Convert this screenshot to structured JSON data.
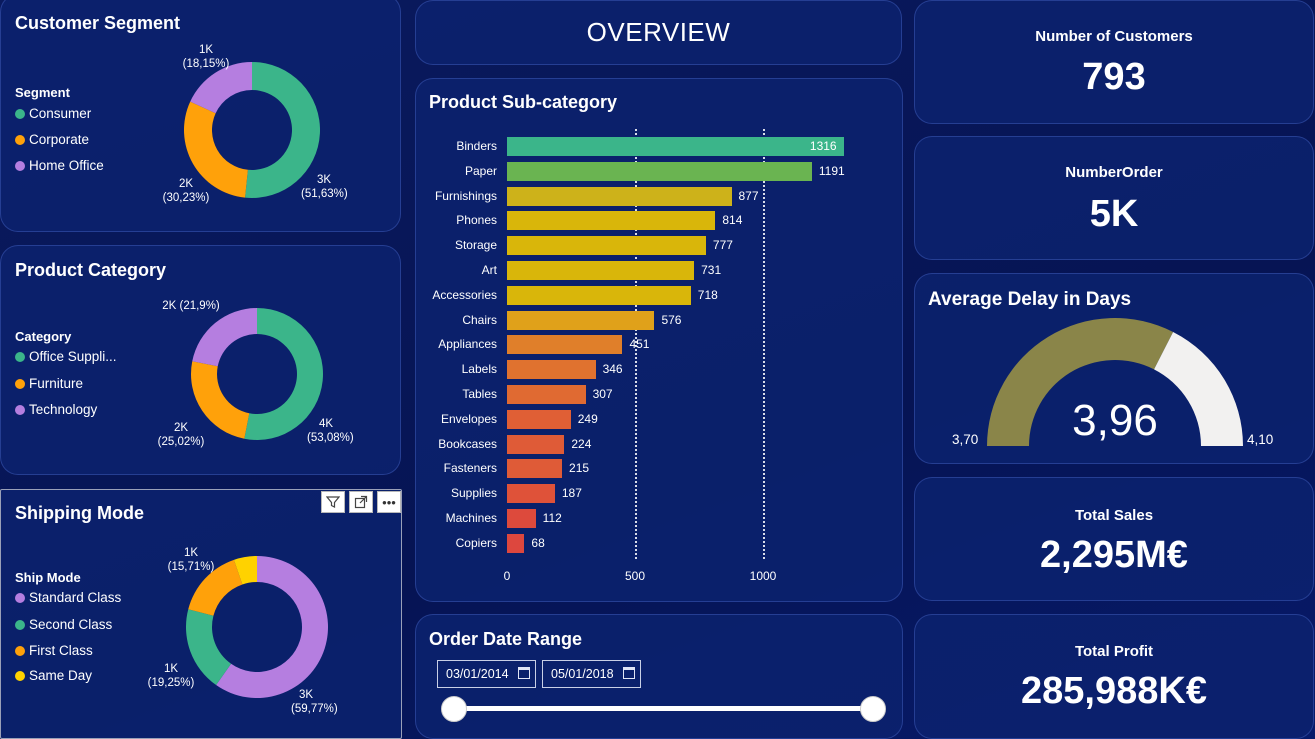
{
  "overview": {
    "title": "OVERVIEW"
  },
  "segment": {
    "title": "Customer Segment",
    "legend_title": "Segment",
    "items": [
      {
        "label": "Consumer",
        "color": "#3bb58a"
      },
      {
        "label": "Corporate",
        "color": "#ffa10a"
      },
      {
        "label": "Home Office",
        "color": "#b57ee0"
      }
    ],
    "slices": [
      {
        "label": "3K",
        "pct": "(51,63%)",
        "value": 51.63,
        "color": "#3bb58a"
      },
      {
        "label": "2K",
        "pct": "(30,23%)",
        "value": 30.23,
        "color": "#ffa10a"
      },
      {
        "label": "1K",
        "pct": "(18,15%)",
        "value": 18.15,
        "color": "#b57ee0"
      }
    ]
  },
  "category": {
    "title": "Product Category",
    "legend_title": "Category",
    "items": [
      {
        "label": "Office Suppli...",
        "color": "#3bb58a"
      },
      {
        "label": "Furniture",
        "color": "#ffa10a"
      },
      {
        "label": "Technology",
        "color": "#b57ee0"
      }
    ],
    "slices": [
      {
        "label": "4K",
        "pct": "(53,08%)",
        "value": 53.08,
        "color": "#3bb58a"
      },
      {
        "label": "2K",
        "pct": "(25,02%)",
        "value": 25.02,
        "color": "#ffa10a"
      },
      {
        "label": "2K (21,9%)",
        "pct": "",
        "value": 21.9,
        "color": "#b57ee0"
      }
    ]
  },
  "shipping": {
    "title": "Shipping Mode",
    "legend_title": "Ship Mode",
    "items": [
      {
        "label": "Standard Class",
        "color": "#b57ee0"
      },
      {
        "label": "Second Class",
        "color": "#3bb58a"
      },
      {
        "label": "First Class",
        "color": "#ffa10a"
      },
      {
        "label": "Same Day",
        "color": "#ffd200"
      }
    ],
    "slices": [
      {
        "label": "3K",
        "pct": "(59,77%)",
        "value": 59.77,
        "color": "#b57ee0"
      },
      {
        "label": "1K",
        "pct": "(19,25%)",
        "value": 19.25,
        "color": "#3bb58a"
      },
      {
        "label": "1K",
        "pct": "(15,71%)",
        "value": 15.71,
        "color": "#ffa10a"
      },
      {
        "label": "",
        "pct": "",
        "value": 5.27,
        "color": "#ffd200"
      }
    ]
  },
  "subcategory": {
    "title": "Product Sub-category",
    "chart_data": {
      "type": "bar",
      "orientation": "horizontal",
      "title": "Product Sub-category",
      "categories": [
        "Binders",
        "Paper",
        "Furnishings",
        "Phones",
        "Storage",
        "Art",
        "Accessories",
        "Chairs",
        "Appliances",
        "Labels",
        "Tables",
        "Envelopes",
        "Bookcases",
        "Fasteners",
        "Supplies",
        "Machines",
        "Copiers"
      ],
      "values": [
        1316,
        1191,
        877,
        814,
        777,
        731,
        718,
        576,
        451,
        346,
        307,
        249,
        224,
        215,
        187,
        112,
        68
      ],
      "xlim": [
        0,
        1400
      ],
      "ticks": [
        "0",
        "500",
        "1000"
      ],
      "tick_values": [
        0,
        500,
        1000
      ],
      "colors": [
        "#3bb58a",
        "#6ab451",
        "#cdb21a",
        "#d9b60a",
        "#d9b60a",
        "#d9b60a",
        "#d9b60a",
        "#e0a11a",
        "#e07f2a",
        "#e0722f",
        "#e06a32",
        "#e05f35",
        "#df5b37",
        "#df5b37",
        "#df5239",
        "#dd4a3c",
        "#dd473e"
      ]
    }
  },
  "date_range": {
    "title": "Order Date Range",
    "start": "03/01/2014",
    "end": "05/01/2018"
  },
  "kpis": {
    "customers": {
      "title": "Number of Customers",
      "value": "793"
    },
    "orders": {
      "title": "NumberOrder",
      "value": "5K"
    },
    "sales": {
      "title": "Total Sales",
      "value": "2,295M€"
    },
    "profit": {
      "title": "Total Profit",
      "value": "285,988K€"
    }
  },
  "gauge": {
    "title": "Average Delay in Days",
    "value": "3,96",
    "min": "3,70",
    "max": "4,10",
    "fraction": 0.65,
    "fill_color": "#8a8549",
    "rest_color": "#f2f1f0"
  }
}
